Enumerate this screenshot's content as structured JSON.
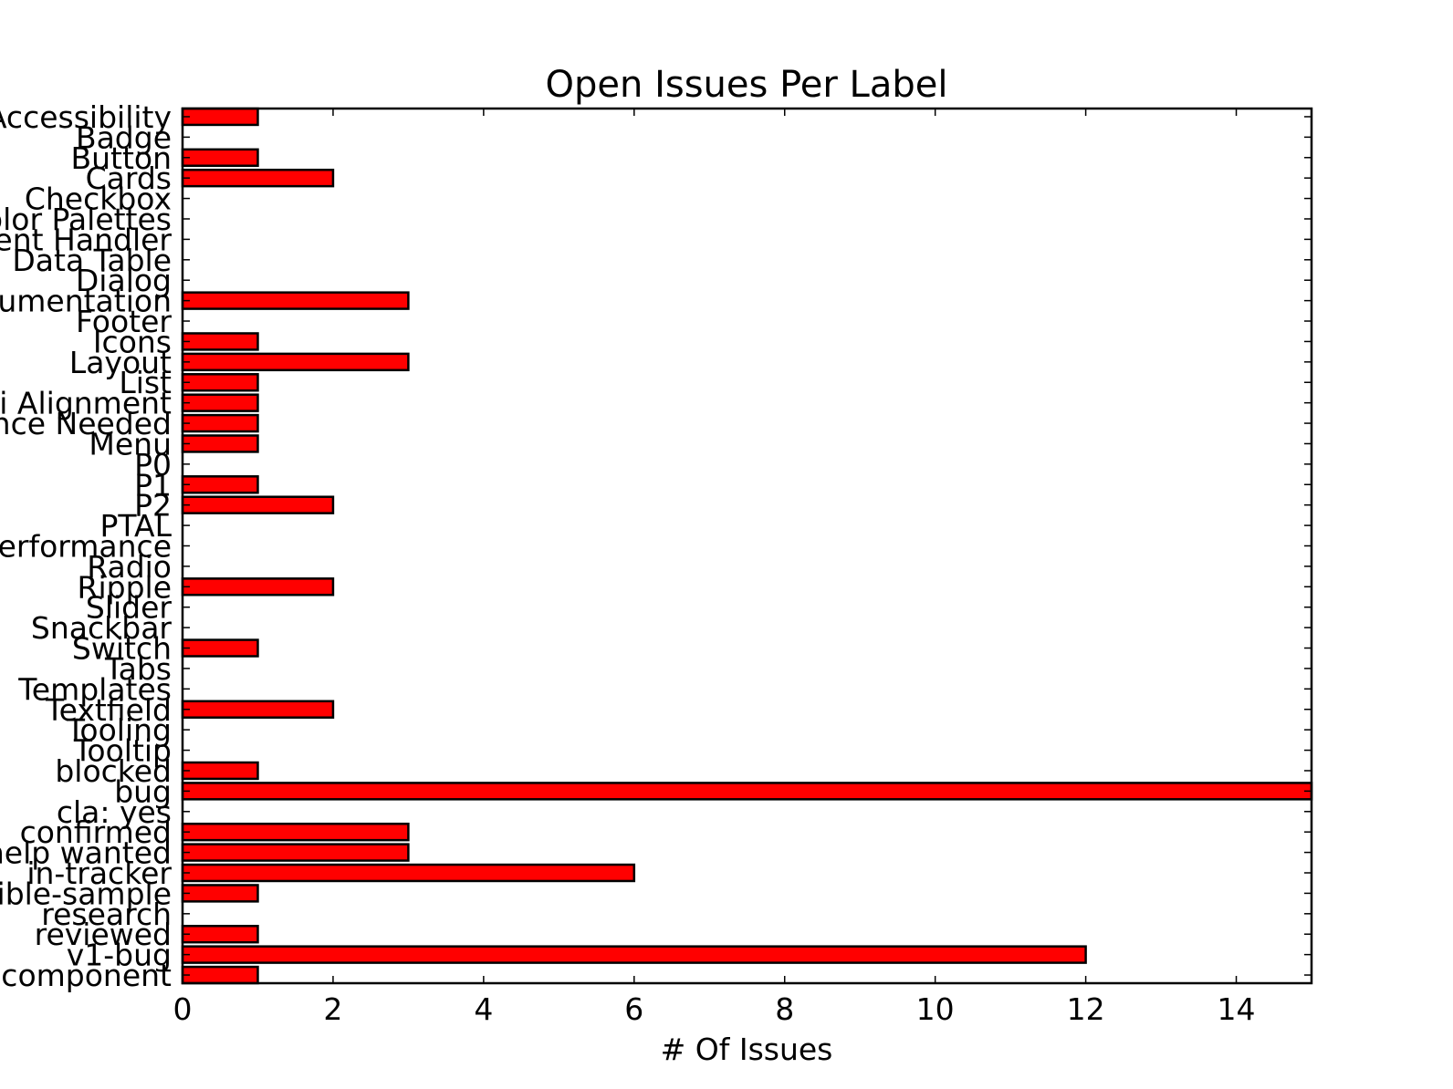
{
  "chart_data": {
    "type": "bar",
    "orientation": "horizontal",
    "title": "Open Issues Per Label",
    "xlabel": "# Of Issues",
    "ylabel": "",
    "xlim": [
      0,
      15
    ],
    "xticks": [
      0,
      2,
      4,
      6,
      8,
      10,
      12,
      14
    ],
    "xtick_labels": [
      "0",
      "2",
      "4",
      "6",
      "8",
      "10",
      "12",
      "14"
    ],
    "grid": false,
    "bar_color": "#ff0000",
    "edge_color": "#000000",
    "categories": [
      "Accessibility",
      "Badge",
      "Button",
      "Cards",
      "Checkbox",
      "Color Palettes",
      "Event Handler",
      "Data Table",
      "Dialog",
      "Documentation",
      "Footer",
      "Icons",
      "Layout",
      "List",
      "RTL/BiDi Alignment",
      "Maintenance Needed",
      "Menu",
      "P0",
      "P1",
      "P2",
      "PTAL",
      "Performance",
      "Radio",
      "Ripple",
      "Slider",
      "Snackbar",
      "Switch",
      "Tabs",
      "Templates",
      "Textfield",
      "Tooling",
      "Tooltip",
      "blocked",
      "bug",
      "cla: yes",
      "confirmed",
      "help wanted",
      "in-tracker",
      "reproducible-sample",
      "research",
      "reviewed",
      "v1-bug",
      "new-component"
    ],
    "values": [
      1,
      0,
      1,
      2,
      0,
      0,
      0,
      0,
      0,
      3,
      0,
      1,
      3,
      1,
      1,
      1,
      1,
      0,
      1,
      2,
      0,
      0,
      0,
      2,
      0,
      0,
      1,
      0,
      0,
      2,
      0,
      0,
      1,
      15,
      0,
      3,
      3,
      6,
      1,
      0,
      1,
      12,
      1
    ]
  }
}
